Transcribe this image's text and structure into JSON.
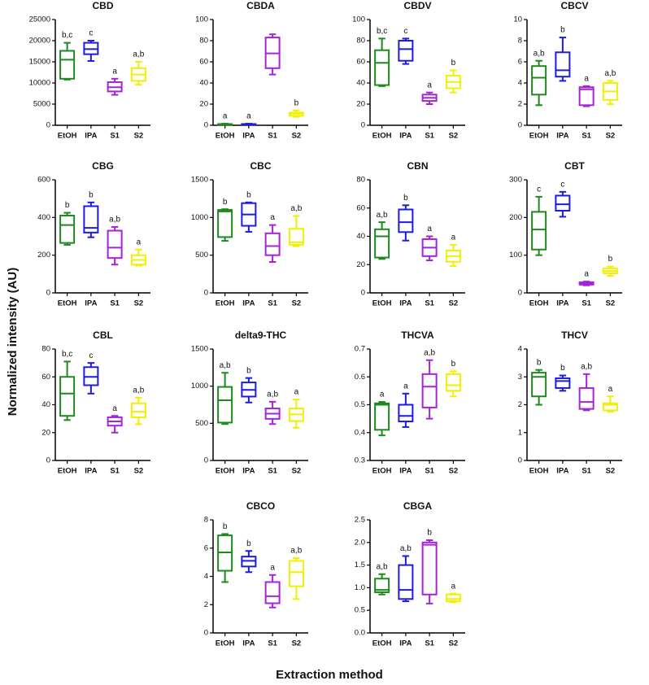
{
  "ylabel": "Normalized intensity (AU)",
  "xlabel": "Extraction method",
  "colors": [
    "#1e8a1e",
    "#1c1ce0",
    "#a623d8",
    "#f0f000"
  ],
  "chart_data": [
    {
      "type": "box",
      "title": "CBD",
      "categories": [
        "EtOH",
        "IPA",
        "S1",
        "S2"
      ],
      "boxes": [
        {
          "min": 10800,
          "q1": 11000,
          "median": 15500,
          "q3": 17600,
          "max": 19500
        },
        {
          "min": 15200,
          "q1": 16800,
          "median": 18000,
          "q3": 19500,
          "max": 20000
        },
        {
          "min": 7200,
          "q1": 8000,
          "median": 9000,
          "q3": 10200,
          "max": 11000
        },
        {
          "min": 9600,
          "q1": 10500,
          "median": 12000,
          "q3": 13500,
          "max": 15000
        }
      ],
      "annotations": [
        "b,c",
        "c",
        "a",
        "a,b"
      ],
      "ylim": [
        0,
        25000
      ],
      "yticks": [
        0,
        5000,
        10000,
        15000,
        20000,
        25000
      ]
    },
    {
      "type": "box",
      "title": "CBDA",
      "categories": [
        "EtOH",
        "IPA",
        "S1",
        "S2"
      ],
      "boxes": [
        {
          "min": 0.5,
          "q1": 0.8,
          "median": 1,
          "q3": 1.2,
          "max": 1.5
        },
        {
          "min": 0.5,
          "q1": 0.8,
          "median": 1,
          "q3": 1.2,
          "max": 1.5
        },
        {
          "min": 48,
          "q1": 54,
          "median": 68,
          "q3": 83,
          "max": 86
        },
        {
          "min": 8,
          "q1": 9,
          "median": 11,
          "q3": 12,
          "max": 14
        }
      ],
      "annotations": [
        "a",
        "a",
        null,
        "b"
      ],
      "ylim": [
        0,
        100
      ],
      "yticks": [
        0,
        20,
        40,
        60,
        80,
        100
      ]
    },
    {
      "type": "box",
      "title": "CBDV",
      "categories": [
        "EtOH",
        "IPA",
        "S1",
        "S2"
      ],
      "boxes": [
        {
          "min": 37,
          "q1": 38,
          "median": 59,
          "q3": 71,
          "max": 82
        },
        {
          "min": 58,
          "q1": 61,
          "median": 72,
          "q3": 80,
          "max": 82
        },
        {
          "min": 20,
          "q1": 23,
          "median": 26,
          "q3": 29,
          "max": 31
        },
        {
          "min": 31,
          "q1": 35,
          "median": 41,
          "q3": 47,
          "max": 52
        }
      ],
      "annotations": [
        "b,c",
        "c",
        "a",
        "b"
      ],
      "ylim": [
        0,
        100
      ],
      "yticks": [
        0,
        20,
        40,
        60,
        80,
        100
      ]
    },
    {
      "type": "box",
      "title": "CBCV",
      "categories": [
        "EtOH",
        "IPA",
        "S1",
        "S2"
      ],
      "boxes": [
        {
          "min": 1.9,
          "q1": 2.9,
          "median": 4.5,
          "q3": 5.6,
          "max": 6.1
        },
        {
          "min": 4.2,
          "q1": 4.6,
          "median": 5.2,
          "q3": 6.9,
          "max": 8.3
        },
        {
          "min": 1.8,
          "q1": 1.9,
          "median": 3.4,
          "q3": 3.6,
          "max": 3.7
        },
        {
          "min": 2.0,
          "q1": 2.4,
          "median": 3.2,
          "q3": 4.0,
          "max": 4.2
        }
      ],
      "annotations": [
        "a,b",
        "b",
        "a",
        "a,b"
      ],
      "ylim": [
        0,
        10
      ],
      "yticks": [
        0,
        2,
        4,
        6,
        8,
        10
      ]
    },
    {
      "type": "box",
      "title": "CBG",
      "categories": [
        "EtOH",
        "IPA",
        "S1",
        "S2"
      ],
      "boxes": [
        {
          "min": 255,
          "q1": 265,
          "median": 360,
          "q3": 410,
          "max": 425
        },
        {
          "min": 295,
          "q1": 320,
          "median": 345,
          "q3": 460,
          "max": 480
        },
        {
          "min": 150,
          "q1": 185,
          "median": 240,
          "q3": 330,
          "max": 350
        },
        {
          "min": 145,
          "q1": 150,
          "median": 175,
          "q3": 200,
          "max": 230
        }
      ],
      "annotations": [
        "b",
        "b",
        "a,b",
        "a"
      ],
      "ylim": [
        0,
        600
      ],
      "yticks": [
        0,
        200,
        400,
        600
      ]
    },
    {
      "type": "box",
      "title": "CBC",
      "categories": [
        "EtOH",
        "IPA",
        "S1",
        "S2"
      ],
      "boxes": [
        {
          "min": 690,
          "q1": 740,
          "median": 1080,
          "q3": 1100,
          "max": 1110
        },
        {
          "min": 810,
          "q1": 890,
          "median": 1040,
          "q3": 1190,
          "max": 1200
        },
        {
          "min": 410,
          "q1": 500,
          "median": 620,
          "q3": 790,
          "max": 900
        },
        {
          "min": 620,
          "q1": 640,
          "median": 670,
          "q3": 850,
          "max": 1020
        }
      ],
      "annotations": [
        "b",
        "b",
        "a",
        "a,b"
      ],
      "ylim": [
        0,
        1500
      ],
      "yticks": [
        0,
        500,
        1000,
        1500
      ]
    },
    {
      "type": "box",
      "title": "CBN",
      "categories": [
        "EtOH",
        "IPA",
        "S1",
        "S2"
      ],
      "boxes": [
        {
          "min": 24,
          "q1": 25,
          "median": 40,
          "q3": 45,
          "max": 50
        },
        {
          "min": 37,
          "q1": 43,
          "median": 50,
          "q3": 59,
          "max": 62
        },
        {
          "min": 23,
          "q1": 26,
          "median": 32,
          "q3": 38,
          "max": 40
        },
        {
          "min": 19,
          "q1": 22,
          "median": 26,
          "q3": 30,
          "max": 34
        }
      ],
      "annotations": [
        "a,b",
        "b",
        "a",
        "a"
      ],
      "ylim": [
        0,
        80
      ],
      "yticks": [
        0,
        20,
        40,
        60,
        80
      ]
    },
    {
      "type": "box",
      "title": "CBT",
      "categories": [
        "EtOH",
        "IPA",
        "S1",
        "S2"
      ],
      "boxes": [
        {
          "min": 100,
          "q1": 115,
          "median": 168,
          "q3": 215,
          "max": 255
        },
        {
          "min": 202,
          "q1": 218,
          "median": 235,
          "q3": 258,
          "max": 268
        },
        {
          "min": 20,
          "q1": 22,
          "median": 25,
          "q3": 28,
          "max": 30
        },
        {
          "min": 45,
          "q1": 52,
          "median": 58,
          "q3": 65,
          "max": 70
        }
      ],
      "annotations": [
        "c",
        "c",
        "a",
        "b"
      ],
      "ylim": [
        0,
        300
      ],
      "yticks": [
        0,
        100,
        200,
        300
      ]
    },
    {
      "type": "box",
      "title": "CBL",
      "categories": [
        "EtOH",
        "IPA",
        "S1",
        "S2"
      ],
      "boxes": [
        {
          "min": 29,
          "q1": 32,
          "median": 48,
          "q3": 60,
          "max": 71
        },
        {
          "min": 48,
          "q1": 54,
          "median": 60,
          "q3": 67,
          "max": 70
        },
        {
          "min": 20,
          "q1": 25,
          "median": 28,
          "q3": 31,
          "max": 32
        },
        {
          "min": 26,
          "q1": 31,
          "median": 35,
          "q3": 41,
          "max": 45
        }
      ],
      "annotations": [
        "b,c",
        "c",
        "a",
        "a,b"
      ],
      "ylim": [
        0,
        80
      ],
      "yticks": [
        0,
        20,
        40,
        60,
        80
      ]
    },
    {
      "type": "box",
      "title": "delta9-THC",
      "categories": [
        "EtOH",
        "IPA",
        "S1",
        "S2"
      ],
      "boxes": [
        {
          "min": 490,
          "q1": 510,
          "median": 810,
          "q3": 990,
          "max": 1180
        },
        {
          "min": 780,
          "q1": 860,
          "median": 950,
          "q3": 1050,
          "max": 1110
        },
        {
          "min": 490,
          "q1": 560,
          "median": 630,
          "q3": 700,
          "max": 790
        },
        {
          "min": 440,
          "q1": 530,
          "median": 620,
          "q3": 700,
          "max": 820
        }
      ],
      "annotations": [
        "a,b",
        "b",
        "a,b",
        "a"
      ],
      "ylim": [
        0,
        1500
      ],
      "yticks": [
        0,
        500,
        1000,
        1500
      ]
    },
    {
      "type": "box",
      "title": "THCVA",
      "categories": [
        "EtOH",
        "IPA",
        "S1",
        "S2"
      ],
      "boxes": [
        {
          "min": 0.39,
          "q1": 0.41,
          "median": 0.5,
          "q3": 0.505,
          "max": 0.51
        },
        {
          "min": 0.42,
          "q1": 0.44,
          "median": 0.46,
          "q3": 0.5,
          "max": 0.54
        },
        {
          "min": 0.45,
          "q1": 0.49,
          "median": 0.565,
          "q3": 0.61,
          "max": 0.66
        },
        {
          "min": 0.53,
          "q1": 0.55,
          "median": 0.57,
          "q3": 0.61,
          "max": 0.62
        }
      ],
      "annotations": [
        "a",
        "a",
        "a,b",
        "b"
      ],
      "ylim": [
        0.3,
        0.7
      ],
      "yticks": [
        0.3,
        0.4,
        0.5,
        0.6,
        0.7
      ]
    },
    {
      "type": "box",
      "title": "THCV",
      "categories": [
        "EtOH",
        "IPA",
        "S1",
        "S2"
      ],
      "boxes": [
        {
          "min": 2.0,
          "q1": 2.3,
          "median": 3.0,
          "q3": 3.15,
          "max": 3.25
        },
        {
          "min": 2.5,
          "q1": 2.6,
          "median": 2.85,
          "q3": 2.95,
          "max": 3.05
        },
        {
          "min": 1.8,
          "q1": 1.85,
          "median": 2.1,
          "q3": 2.6,
          "max": 3.1
        },
        {
          "min": 1.75,
          "q1": 1.8,
          "median": 2.0,
          "q3": 2.05,
          "max": 2.3
        }
      ],
      "annotations": [
        "b",
        "b",
        "a,b",
        "a"
      ],
      "ylim": [
        0,
        4
      ],
      "yticks": [
        0,
        1,
        2,
        3,
        4
      ]
    },
    {
      "type": "box",
      "title": "CBCO",
      "categories": [
        "EtOH",
        "IPA",
        "S1",
        "S2"
      ],
      "boxes": [
        {
          "min": 3.6,
          "q1": 4.4,
          "median": 5.7,
          "q3": 6.9,
          "max": 7.0
        },
        {
          "min": 4.3,
          "q1": 4.7,
          "median": 5.1,
          "q3": 5.4,
          "max": 5.8
        },
        {
          "min": 1.8,
          "q1": 2.1,
          "median": 2.6,
          "q3": 3.6,
          "max": 4.1
        },
        {
          "min": 2.4,
          "q1": 3.3,
          "median": 4.3,
          "q3": 5.1,
          "max": 5.3
        }
      ],
      "annotations": [
        "b",
        "b",
        "a",
        "a,b"
      ],
      "ylim": [
        0,
        8
      ],
      "yticks": [
        0,
        2,
        4,
        6,
        8
      ]
    },
    {
      "type": "box",
      "title": "CBGA",
      "categories": [
        "EtOH",
        "IPA",
        "S1",
        "S2"
      ],
      "boxes": [
        {
          "min": 0.85,
          "q1": 0.9,
          "median": 0.95,
          "q3": 1.2,
          "max": 1.3
        },
        {
          "min": 0.7,
          "q1": 0.75,
          "median": 0.95,
          "q3": 1.5,
          "max": 1.7
        },
        {
          "min": 0.65,
          "q1": 0.85,
          "median": 1.95,
          "q3": 2.0,
          "max": 2.05
        },
        {
          "min": 0.68,
          "q1": 0.7,
          "median": 0.75,
          "q3": 0.85,
          "max": 0.87
        }
      ],
      "annotations": [
        "a,b",
        "a,b",
        "b",
        "a"
      ],
      "ylim": [
        0,
        2.5
      ],
      "yticks": [
        {
          "value": 0,
          "label": "0.0"
        },
        0.5,
        {
          "value": 1,
          "label": "1.0"
        },
        1.5,
        {
          "value": 2,
          "label": "2.0"
        },
        2.5
      ]
    }
  ]
}
